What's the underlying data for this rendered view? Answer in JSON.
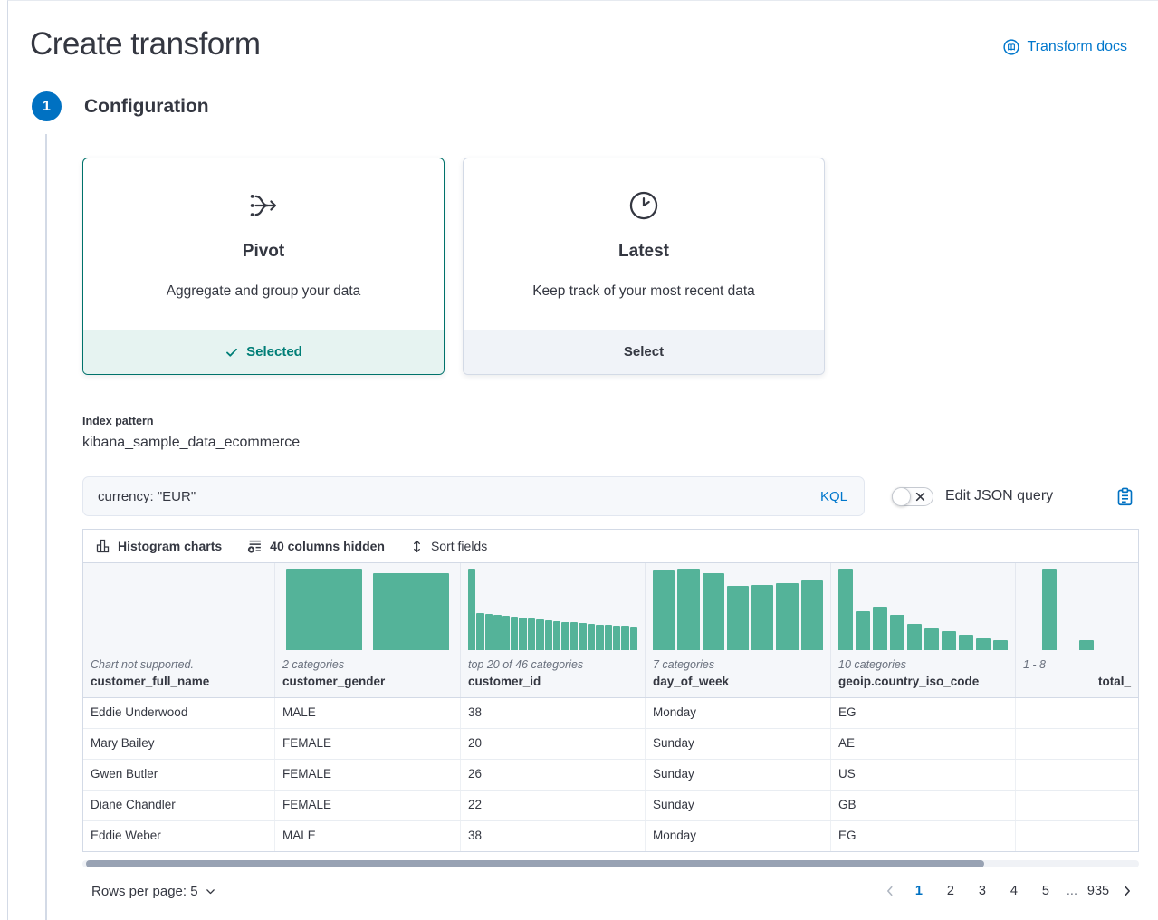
{
  "header": {
    "title": "Create transform",
    "docs_link": "Transform docs"
  },
  "step": {
    "number": "1",
    "title": "Configuration"
  },
  "cards": {
    "pivot": {
      "title": "Pivot",
      "description": "Aggregate and group your data",
      "footer_label": "Selected"
    },
    "latest": {
      "title": "Latest",
      "description": "Keep track of your most recent data",
      "footer_label": "Select"
    }
  },
  "index_pattern": {
    "label": "Index pattern",
    "value": "kibana_sample_data_ecommerce"
  },
  "query": {
    "value": "currency: \"EUR\"",
    "language": "KQL",
    "toggle_label": "Edit JSON query"
  },
  "grid_toolbar": {
    "histogram_button": "Histogram charts",
    "columns_button": "40 columns hidden",
    "sort_button": "Sort fields"
  },
  "grid": {
    "columns": [
      {
        "name": "customer_full_name",
        "meta": "Chart not supported.",
        "bars": []
      },
      {
        "name": "customer_gender",
        "meta": "2 categories",
        "bars": [
          100,
          94
        ]
      },
      {
        "name": "customer_id",
        "meta": "top 20 of 46 categories",
        "bars": [
          100,
          46,
          44,
          43,
          42,
          41,
          40,
          39,
          38,
          37,
          36,
          35,
          34,
          33,
          32,
          31,
          31,
          30,
          30,
          29
        ]
      },
      {
        "name": "day_of_week",
        "meta": "7 categories",
        "bars": [
          98,
          100,
          94,
          79,
          80,
          82,
          86
        ]
      },
      {
        "name": "geoip.country_iso_code",
        "meta": "10 categories",
        "bars": [
          100,
          48,
          53,
          43,
          32,
          27,
          23,
          19,
          14,
          12
        ]
      },
      {
        "name": "total_",
        "meta": "1 - 8",
        "bars": [
          0,
          100,
          0,
          12,
          0,
          0
        ]
      }
    ],
    "rows": [
      [
        "Eddie Underwood",
        "MALE",
        "38",
        "Monday",
        "EG",
        ""
      ],
      [
        "Mary Bailey",
        "FEMALE",
        "20",
        "Sunday",
        "AE",
        ""
      ],
      [
        "Gwen Butler",
        "FEMALE",
        "26",
        "Sunday",
        "US",
        ""
      ],
      [
        "Diane Chandler",
        "FEMALE",
        "22",
        "Sunday",
        "GB",
        ""
      ],
      [
        "Eddie Weber",
        "MALE",
        "38",
        "Monday",
        "EG",
        ""
      ]
    ]
  },
  "pagination": {
    "rows_per_page_label": "Rows per page: 5",
    "pages": [
      "1",
      "2",
      "3",
      "4",
      "5"
    ],
    "ellipsis": "...",
    "last_page": "935",
    "active_page": "1"
  },
  "colors": {
    "primary_blue": "#0071C2",
    "success_teal": "#007E77",
    "histogram_bar": "#54B399"
  }
}
